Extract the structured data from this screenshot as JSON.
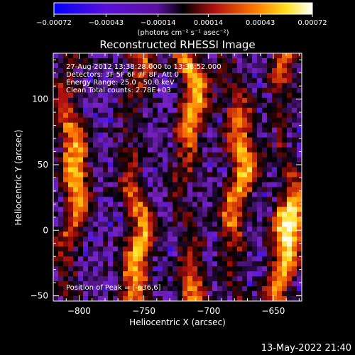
{
  "colorbar": {
    "tick_labels": [
      "-0.00072",
      "-0.00043",
      "-0.00014",
      "0.00014",
      "0.00043",
      "0.00072"
    ],
    "range": [
      -0.00072,
      0.00072
    ],
    "units_label": "(photons cm⁻² s⁻¹ asec⁻²)"
  },
  "chart_data": {
    "type": "heatmap",
    "title": "Reconstructed RHESSI Image",
    "xlabel": "Heliocentric X (arcsec)",
    "ylabel": "Heliocentric Y (arcsec)",
    "xlim": [
      -820,
      -628
    ],
    "ylim": [
      -54,
      135
    ],
    "x_ticks": [
      {
        "value": -800,
        "label": "−800"
      },
      {
        "value": -750,
        "label": "−750"
      },
      {
        "value": -700,
        "label": "−700"
      },
      {
        "value": -650,
        "label": "−650"
      }
    ],
    "y_ticks": [
      {
        "value": -50,
        "label": "−50"
      },
      {
        "value": 0,
        "label": "0"
      },
      {
        "value": 50,
        "label": "50"
      },
      {
        "value": 100,
        "label": "100"
      }
    ],
    "info_lines": [
      "27-Aug-2012 13:38:28.000 to 13:38:52.000",
      "Detectors: 3F 5F 6F 7F 8F, Att 0",
      "Energy Range: 25.0 - 50.0 keV",
      "Clean    Total counts: 2.78E+03"
    ],
    "peak_text": "Position of Peak = [-636,6]",
    "bright_ridges_x": [
      -806,
      -757,
      -716,
      -678,
      -640
    ],
    "peak_position": [
      -636,
      6
    ],
    "colormap": [
      "#0000ff",
      "#7a22c8",
      "#000000",
      "#b01010",
      "#ff7a00",
      "#ffe020",
      "#ffffff"
    ]
  },
  "timestamp": "13-May-2022 21:40"
}
